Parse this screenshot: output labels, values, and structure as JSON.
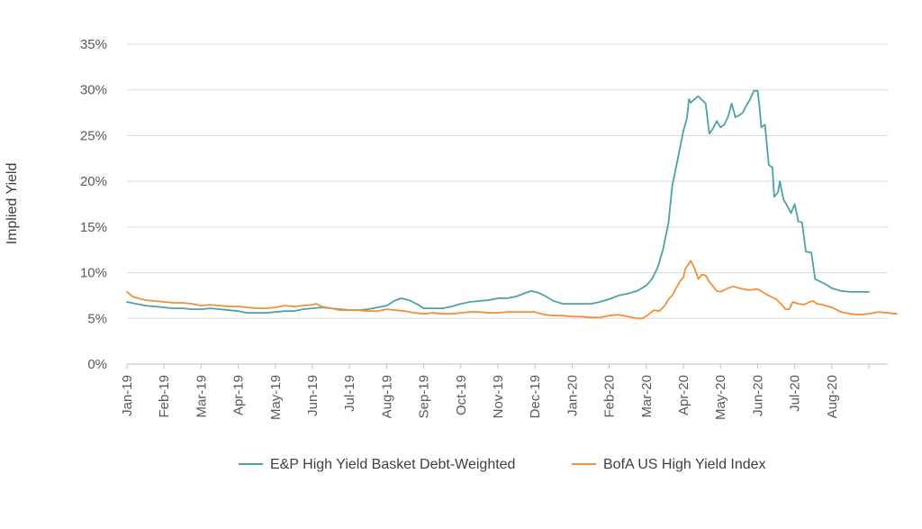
{
  "chart_data": {
    "type": "line",
    "title": "",
    "xlabel": "",
    "ylabel": "Implied Yield",
    "ylim": [
      0,
      35
    ],
    "yticks": [
      "0%",
      "5%",
      "10%",
      "15%",
      "20%",
      "25%",
      "30%",
      "35%"
    ],
    "x_tick_labels": [
      "Jan-19",
      "Feb-19",
      "Mar-19",
      "Apr-19",
      "May-19",
      "Jun-19",
      "Jul-19",
      "Aug-19",
      "Sep-19",
      "Oct-19",
      "Nov-19",
      "Dec-19",
      "Jan-20",
      "Feb-20",
      "Mar-20",
      "Apr-20",
      "May-20",
      "Jun-20",
      "Jul-20",
      "Aug-20"
    ],
    "x_range_months": [
      0,
      20.0
    ],
    "grid": true,
    "legend_position": "bottom",
    "series": [
      {
        "name": "E&P High Yield Basket Debt-Weighted",
        "color": "#4BA3A3",
        "points": [
          [
            0,
            6.8
          ],
          [
            0.25,
            6.6
          ],
          [
            0.5,
            6.4
          ],
          [
            0.75,
            6.3
          ],
          [
            1.0,
            6.2
          ],
          [
            1.25,
            6.1
          ],
          [
            1.5,
            6.1
          ],
          [
            1.75,
            6.0
          ],
          [
            2.0,
            6.0
          ],
          [
            2.25,
            6.1
          ],
          [
            2.5,
            6.0
          ],
          [
            2.75,
            5.9
          ],
          [
            3.0,
            5.8
          ],
          [
            3.25,
            5.6
          ],
          [
            3.5,
            5.6
          ],
          [
            3.75,
            5.6
          ],
          [
            4.0,
            5.7
          ],
          [
            4.25,
            5.8
          ],
          [
            4.5,
            5.8
          ],
          [
            4.75,
            6.0
          ],
          [
            5.0,
            6.1
          ],
          [
            5.25,
            6.2
          ],
          [
            5.5,
            6.1
          ],
          [
            5.75,
            6.0
          ],
          [
            6.0,
            5.9
          ],
          [
            6.25,
            5.9
          ],
          [
            6.5,
            6.0
          ],
          [
            6.75,
            6.2
          ],
          [
            7.0,
            6.4
          ],
          [
            7.25,
            7.0
          ],
          [
            7.4,
            7.2
          ],
          [
            7.6,
            7.0
          ],
          [
            7.85,
            6.5
          ],
          [
            8.0,
            6.1
          ],
          [
            8.25,
            6.1
          ],
          [
            8.5,
            6.1
          ],
          [
            8.75,
            6.3
          ],
          [
            9.0,
            6.6
          ],
          [
            9.25,
            6.8
          ],
          [
            9.5,
            6.9
          ],
          [
            9.75,
            7.0
          ],
          [
            10.0,
            7.2
          ],
          [
            10.25,
            7.2
          ],
          [
            10.5,
            7.4
          ],
          [
            10.75,
            7.8
          ],
          [
            10.9,
            8.0
          ],
          [
            11.1,
            7.8
          ],
          [
            11.25,
            7.5
          ],
          [
            11.5,
            6.9
          ],
          [
            11.75,
            6.6
          ],
          [
            12.0,
            6.6
          ],
          [
            12.25,
            6.6
          ],
          [
            12.5,
            6.6
          ],
          [
            12.75,
            6.8
          ],
          [
            13.0,
            7.1
          ],
          [
            13.25,
            7.5
          ],
          [
            13.5,
            7.7
          ],
          [
            13.75,
            8.0
          ],
          [
            14.0,
            8.6
          ],
          [
            14.15,
            9.3
          ],
          [
            14.3,
            10.5
          ],
          [
            14.45,
            12.5
          ],
          [
            14.6,
            15.5
          ],
          [
            14.7,
            19.5
          ],
          [
            14.8,
            21.5
          ],
          [
            14.9,
            23.5
          ],
          [
            15.0,
            25.5
          ],
          [
            15.1,
            27.0
          ],
          [
            15.15,
            29.0
          ],
          [
            15.2,
            28.6
          ],
          [
            15.3,
            29.0
          ],
          [
            15.4,
            29.3
          ],
          [
            15.5,
            28.9
          ],
          [
            15.6,
            28.5
          ],
          [
            15.7,
            25.2
          ],
          [
            15.8,
            25.8
          ],
          [
            15.9,
            26.6
          ],
          [
            16.0,
            25.9
          ],
          [
            16.1,
            26.2
          ],
          [
            16.2,
            27.0
          ],
          [
            16.3,
            28.5
          ],
          [
            16.4,
            27.0
          ],
          [
            16.5,
            27.2
          ],
          [
            16.6,
            27.5
          ],
          [
            16.7,
            28.3
          ],
          [
            16.8,
            29.0
          ],
          [
            16.9,
            29.9
          ],
          [
            17.0,
            29.9
          ],
          [
            17.05,
            28.2
          ],
          [
            17.1,
            25.9
          ],
          [
            17.2,
            26.2
          ],
          [
            17.25,
            24.0
          ],
          [
            17.3,
            21.8
          ],
          [
            17.4,
            21.5
          ],
          [
            17.45,
            18.3
          ],
          [
            17.55,
            18.8
          ],
          [
            17.6,
            20.0
          ],
          [
            17.7,
            18.0
          ],
          [
            17.8,
            17.3
          ],
          [
            17.9,
            16.5
          ],
          [
            18.0,
            17.5
          ],
          [
            18.1,
            15.6
          ],
          [
            18.2,
            15.5
          ],
          [
            18.3,
            12.3
          ],
          [
            18.45,
            12.2
          ],
          [
            18.55,
            9.3
          ],
          [
            18.7,
            9.0
          ],
          [
            18.85,
            8.7
          ],
          [
            19.0,
            8.3
          ],
          [
            19.25,
            8.0
          ],
          [
            19.5,
            7.9
          ],
          [
            19.75,
            7.9
          ],
          [
            20.0,
            7.9
          ]
        ]
      },
      {
        "name": "BofA US High Yield Index",
        "color": "#F0913A",
        "points": [
          [
            0,
            7.9
          ],
          [
            0.15,
            7.4
          ],
          [
            0.3,
            7.2
          ],
          [
            0.5,
            7.0
          ],
          [
            0.75,
            6.9
          ],
          [
            1.0,
            6.8
          ],
          [
            1.25,
            6.7
          ],
          [
            1.5,
            6.7
          ],
          [
            1.75,
            6.6
          ],
          [
            2.0,
            6.4
          ],
          [
            2.25,
            6.5
          ],
          [
            2.5,
            6.4
          ],
          [
            2.75,
            6.3
          ],
          [
            3.0,
            6.3
          ],
          [
            3.25,
            6.2
          ],
          [
            3.5,
            6.1
          ],
          [
            3.75,
            6.1
          ],
          [
            4.0,
            6.2
          ],
          [
            4.25,
            6.4
          ],
          [
            4.5,
            6.3
          ],
          [
            4.75,
            6.4
          ],
          [
            5.0,
            6.5
          ],
          [
            5.1,
            6.6
          ],
          [
            5.25,
            6.3
          ],
          [
            5.5,
            6.1
          ],
          [
            5.75,
            5.9
          ],
          [
            6.0,
            5.9
          ],
          [
            6.25,
            5.9
          ],
          [
            6.5,
            5.8
          ],
          [
            6.75,
            5.8
          ],
          [
            7.0,
            6.0
          ],
          [
            7.25,
            5.9
          ],
          [
            7.5,
            5.8
          ],
          [
            7.75,
            5.6
          ],
          [
            8.0,
            5.5
          ],
          [
            8.25,
            5.6
          ],
          [
            8.5,
            5.5
          ],
          [
            8.75,
            5.5
          ],
          [
            9.0,
            5.6
          ],
          [
            9.25,
            5.7
          ],
          [
            9.5,
            5.7
          ],
          [
            9.75,
            5.6
          ],
          [
            10.0,
            5.6
          ],
          [
            10.25,
            5.7
          ],
          [
            10.5,
            5.7
          ],
          [
            10.75,
            5.7
          ],
          [
            11.0,
            5.7
          ],
          [
            11.25,
            5.4
          ],
          [
            11.5,
            5.3
          ],
          [
            11.75,
            5.3
          ],
          [
            12.0,
            5.2
          ],
          [
            12.25,
            5.2
          ],
          [
            12.5,
            5.1
          ],
          [
            12.75,
            5.1
          ],
          [
            13.0,
            5.3
          ],
          [
            13.25,
            5.4
          ],
          [
            13.5,
            5.2
          ],
          [
            13.75,
            5.0
          ],
          [
            13.9,
            5.0
          ],
          [
            14.05,
            5.4
          ],
          [
            14.2,
            5.9
          ],
          [
            14.35,
            5.8
          ],
          [
            14.5,
            6.4
          ],
          [
            14.6,
            7.1
          ],
          [
            14.7,
            7.5
          ],
          [
            14.8,
            8.3
          ],
          [
            14.9,
            9.0
          ],
          [
            15.0,
            9.5
          ],
          [
            15.05,
            10.4
          ],
          [
            15.15,
            11.0
          ],
          [
            15.2,
            11.3
          ],
          [
            15.3,
            10.5
          ],
          [
            15.4,
            9.3
          ],
          [
            15.5,
            9.8
          ],
          [
            15.6,
            9.7
          ],
          [
            15.7,
            9.0
          ],
          [
            15.8,
            8.5
          ],
          [
            15.9,
            8.0
          ],
          [
            16.0,
            7.9
          ],
          [
            16.1,
            8.1
          ],
          [
            16.2,
            8.3
          ],
          [
            16.35,
            8.5
          ],
          [
            16.5,
            8.3
          ],
          [
            16.75,
            8.1
          ],
          [
            17.0,
            8.2
          ],
          [
            17.25,
            7.6
          ],
          [
            17.5,
            7.1
          ],
          [
            17.65,
            6.5
          ],
          [
            17.75,
            6.0
          ],
          [
            17.85,
            6.0
          ],
          [
            17.95,
            6.8
          ],
          [
            18.1,
            6.6
          ],
          [
            18.25,
            6.5
          ],
          [
            18.4,
            6.8
          ],
          [
            18.5,
            6.9
          ],
          [
            18.6,
            6.6
          ],
          [
            18.75,
            6.5
          ],
          [
            19.0,
            6.2
          ],
          [
            19.25,
            5.7
          ],
          [
            19.5,
            5.5
          ],
          [
            19.75,
            5.4
          ],
          [
            20.0,
            5.5
          ],
          [
            20.25,
            5.7
          ],
          [
            20.5,
            5.6
          ],
          [
            20.75,
            5.5
          ]
        ]
      }
    ]
  }
}
